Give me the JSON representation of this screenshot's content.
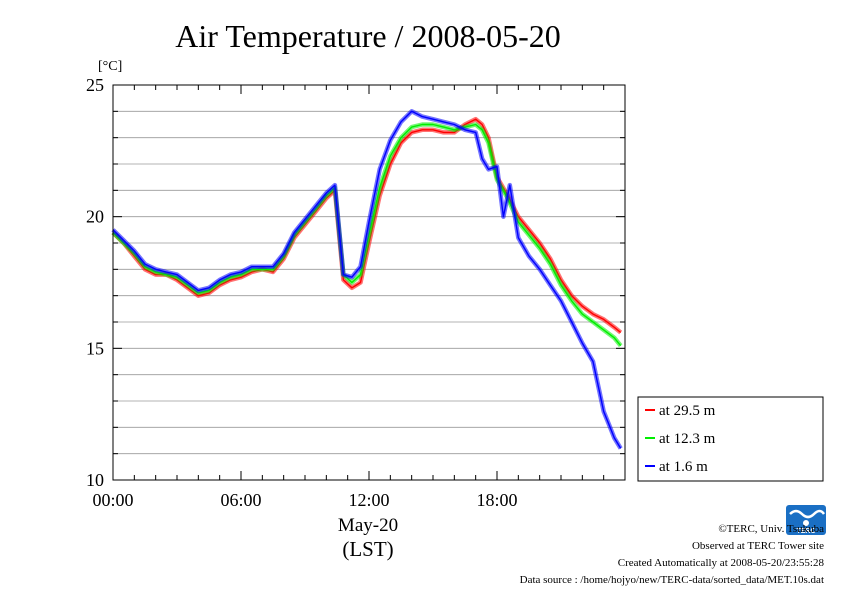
{
  "chart_data": {
    "type": "line",
    "title": "Air Temperature / 2008-05-20",
    "ylabel": "[°C]",
    "xlabel": "May-20",
    "xlabel2": "(LST)",
    "ylim": [
      10,
      25
    ],
    "xlim_hours": [
      0,
      24
    ],
    "x_ticks": [
      "00:00",
      "06:00",
      "12:00",
      "18:00"
    ],
    "y_ticks": [
      "10",
      "15",
      "20",
      "25"
    ],
    "grid": true,
    "legend_position": "right-bottom",
    "series": [
      {
        "name": "at 29.5 m",
        "color": "#ff0000",
        "x": [
          0,
          0.5,
          1,
          1.5,
          2,
          2.5,
          3,
          3.5,
          4,
          4.5,
          5,
          5.5,
          6,
          6.5,
          7,
          7.5,
          8,
          8.5,
          9,
          9.5,
          10,
          10.4,
          10.8,
          11.2,
          11.6,
          12,
          12.5,
          13,
          13.5,
          14,
          14.5,
          15,
          15.5,
          16,
          16.5,
          17,
          17.3,
          17.6,
          18,
          18.5,
          19,
          19.5,
          20,
          20.5,
          21,
          21.5,
          22,
          22.5,
          23,
          23.5,
          23.8
        ],
        "values": [
          19.4,
          19.0,
          18.5,
          18.0,
          17.8,
          17.8,
          17.6,
          17.3,
          17.0,
          17.1,
          17.4,
          17.6,
          17.7,
          17.9,
          18.0,
          17.9,
          18.4,
          19.2,
          19.7,
          20.2,
          20.7,
          21.0,
          17.6,
          17.3,
          17.5,
          19.0,
          20.8,
          22.0,
          22.8,
          23.2,
          23.3,
          23.3,
          23.2,
          23.2,
          23.5,
          23.7,
          23.5,
          23.0,
          21.5,
          20.8,
          20.0,
          19.5,
          19.0,
          18.4,
          17.6,
          17.0,
          16.6,
          16.3,
          16.1,
          15.8,
          15.6
        ]
      },
      {
        "name": "at 12.3 m",
        "color": "#00ee00",
        "x": [
          0,
          0.5,
          1,
          1.5,
          2,
          2.5,
          3,
          3.5,
          4,
          4.5,
          5,
          5.5,
          6,
          6.5,
          7,
          7.5,
          8,
          8.5,
          9,
          9.5,
          10,
          10.4,
          10.8,
          11.2,
          11.6,
          12,
          12.5,
          13,
          13.5,
          14,
          14.5,
          15,
          15.5,
          16,
          16.5,
          17,
          17.3,
          17.6,
          18,
          18.5,
          19,
          19.5,
          20,
          20.5,
          21,
          21.5,
          22,
          22.5,
          23,
          23.5,
          23.8
        ],
        "values": [
          19.4,
          19.0,
          18.6,
          18.1,
          17.9,
          17.8,
          17.7,
          17.4,
          17.1,
          17.2,
          17.5,
          17.7,
          17.8,
          18.0,
          18.0,
          18.0,
          18.5,
          19.3,
          19.8,
          20.3,
          20.8,
          21.1,
          17.8,
          17.5,
          17.8,
          19.3,
          21.1,
          22.3,
          23.0,
          23.4,
          23.5,
          23.5,
          23.4,
          23.3,
          23.4,
          23.5,
          23.3,
          22.8,
          21.4,
          20.7,
          19.8,
          19.3,
          18.8,
          18.2,
          17.4,
          16.8,
          16.3,
          16.0,
          15.7,
          15.4,
          15.1
        ]
      },
      {
        "name": "at 1.6 m",
        "color": "#0000ff",
        "x": [
          0,
          0.5,
          1,
          1.5,
          2,
          2.5,
          3,
          3.5,
          4,
          4.5,
          5,
          5.5,
          6,
          6.5,
          7,
          7.5,
          8,
          8.5,
          9,
          9.5,
          10,
          10.4,
          10.8,
          11.2,
          11.6,
          12,
          12.5,
          13,
          13.5,
          14,
          14.5,
          15,
          15.5,
          16,
          16.5,
          17,
          17.3,
          17.6,
          18,
          18.3,
          18.6,
          19,
          19.5,
          20,
          20.5,
          21,
          21.5,
          22,
          22.5,
          23,
          23.3,
          23.5,
          23.8
        ],
        "values": [
          19.5,
          19.1,
          18.7,
          18.2,
          18.0,
          17.9,
          17.8,
          17.5,
          17.2,
          17.3,
          17.6,
          17.8,
          17.9,
          18.1,
          18.1,
          18.1,
          18.6,
          19.4,
          19.9,
          20.4,
          20.9,
          21.2,
          17.8,
          17.7,
          18.1,
          19.8,
          21.8,
          22.9,
          23.6,
          24.0,
          23.8,
          23.7,
          23.6,
          23.5,
          23.3,
          23.2,
          22.2,
          21.8,
          21.9,
          20.0,
          21.2,
          19.2,
          18.5,
          18.0,
          17.4,
          16.8,
          16.0,
          15.2,
          14.5,
          12.6,
          12.0,
          11.6,
          11.2
        ]
      }
    ]
  },
  "footer": {
    "copyright": "©TERC, Univ. Tsukuba",
    "site": "Observed at TERC Tower site",
    "created": "Created Automatically at 2008-05-20/23:55:28",
    "source": "Data source : /home/hojyo/new/TERC-data/sorted_data/MET.10s.dat",
    "logo_text": "TERC"
  }
}
